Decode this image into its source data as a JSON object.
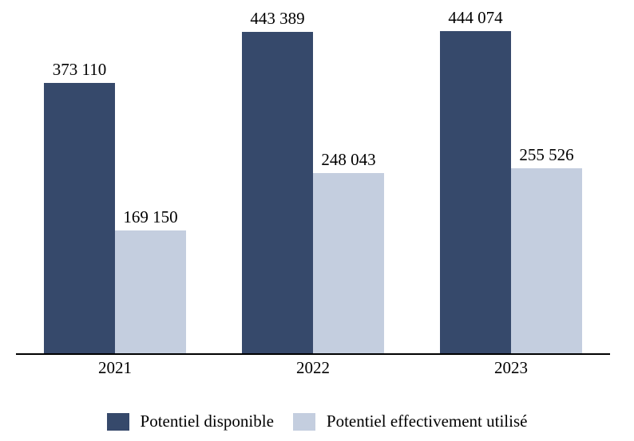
{
  "chart_data": {
    "type": "bar",
    "title": "",
    "xlabel": "",
    "ylabel": "",
    "categories": [
      "2021",
      "2022",
      "2023"
    ],
    "series": [
      {
        "name": "Potentiel disponible",
        "color": "#36496B",
        "values": [
          373110,
          443389,
          444074
        ],
        "value_labels": [
          "373 110",
          "443 389",
          "444 074"
        ]
      },
      {
        "name": "Potentiel effectivement utilisé",
        "color": "#C4CEDF",
        "values": [
          169150,
          248043,
          255526
        ],
        "value_labels": [
          "169 150",
          "248 043",
          "255 526"
        ]
      }
    ],
    "ylim": [
      0,
      487000
    ],
    "grid": false,
    "y_axis_visible": false,
    "legend_position": "bottom",
    "axis_color": "#000000",
    "background": "#FFFFFF"
  }
}
